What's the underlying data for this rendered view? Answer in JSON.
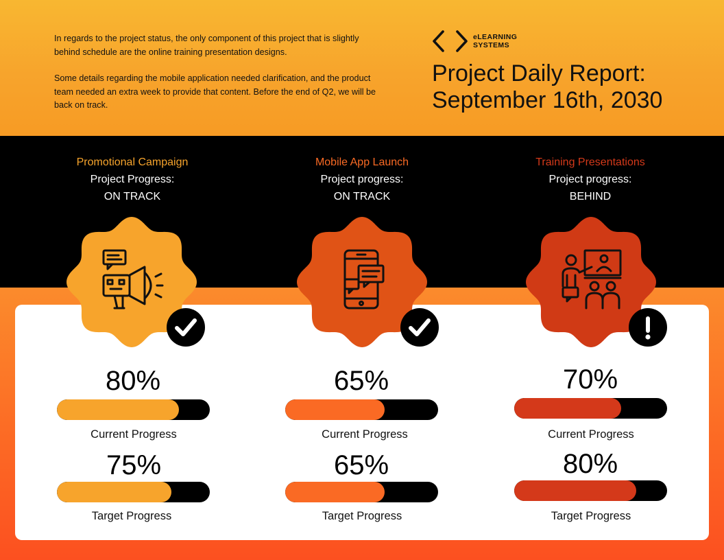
{
  "intro": {
    "paragraph1": "In regards to the project status, the only component of this project that is slightly behind schedule are the online training presentation designs.",
    "paragraph2": "Some details regarding the mobile application needed clarification, and the product team needed an extra week to provide that content. Before the end of Q2, we will be back on track."
  },
  "logo": {
    "line1": "eLEARNING",
    "line2": "SYSTEMS",
    "icon": "code-brackets-icon"
  },
  "title": {
    "line1": "Project Daily Report:",
    "line2": "September 16th, 2030"
  },
  "colors": {
    "campaign": "#f7a42c",
    "mobile": "#fa6a24",
    "training": "#d4391a",
    "mobile_badge": "#e05316",
    "training_badge": "#d03a15"
  },
  "projects": [
    {
      "name": "Promotional Campaign",
      "progress_label": "Project Progress:",
      "status": "ON TRACK",
      "status_icon": "check-icon",
      "icon": "megaphone-icon",
      "current": {
        "value": "80%",
        "fraction": 0.8,
        "label": "Current Progress"
      },
      "target": {
        "value": "75%",
        "fraction": 0.75,
        "label": "Target Progress"
      }
    },
    {
      "name": "Mobile App Launch",
      "progress_label": "Project progress:",
      "status": "ON TRACK",
      "status_icon": "check-icon",
      "icon": "mobile-chat-icon",
      "current": {
        "value": "65%",
        "fraction": 0.65,
        "label": "Current Progress"
      },
      "target": {
        "value": "65%",
        "fraction": 0.65,
        "label": "Target Progress"
      }
    },
    {
      "name": "Training Presentations",
      "progress_label": "Project progress:",
      "status": "BEHIND",
      "status_icon": "exclamation-icon",
      "icon": "presentation-icon",
      "current": {
        "value": "70%",
        "fraction": 0.7,
        "label": "Current Progress"
      },
      "target": {
        "value": "80%",
        "fraction": 0.8,
        "label": "Target Progress"
      }
    }
  ]
}
